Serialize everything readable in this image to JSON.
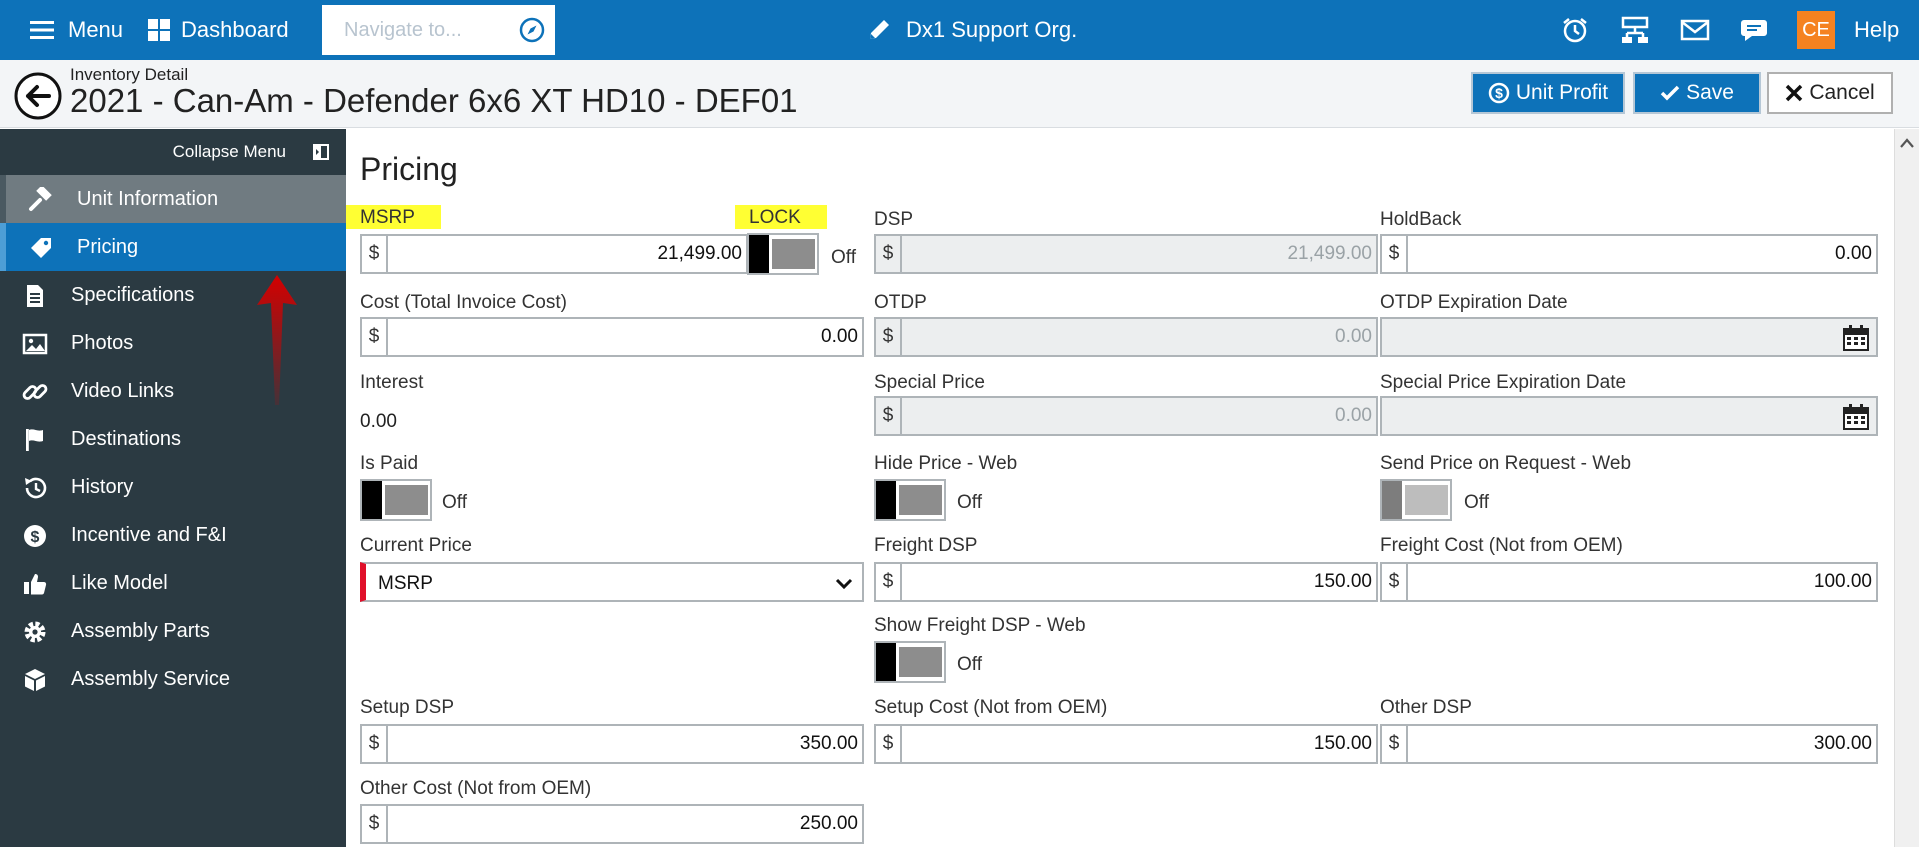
{
  "topbar": {
    "menu_label": "Menu",
    "dashboard_label": "Dashboard",
    "navigate_placeholder": "Navigate to...",
    "org_name": "Dx1 Support Org.",
    "avatar_initials": "CE",
    "help_label": "Help"
  },
  "header": {
    "breadcrumb": "Inventory Detail",
    "title": "2021 - Can-Am - Defender 6x6 XT HD10 - DEF01",
    "unit_profit_label": "Unit Profit",
    "save_label": "Save",
    "cancel_label": "Cancel"
  },
  "sidebar": {
    "collapse_label": "Collapse Menu",
    "items": [
      {
        "label": "Unit Information",
        "icon": "gavel-icon"
      },
      {
        "label": "Pricing",
        "icon": "tag-icon"
      },
      {
        "label": "Specifications",
        "icon": "document-icon"
      },
      {
        "label": "Photos",
        "icon": "image-icon"
      },
      {
        "label": "Video Links",
        "icon": "link-icon"
      },
      {
        "label": "Destinations",
        "icon": "flag-icon"
      },
      {
        "label": "History",
        "icon": "history-icon"
      },
      {
        "label": "Incentive and F&I",
        "icon": "dollar-circle-icon"
      },
      {
        "label": "Like Model",
        "icon": "thumbs-up-icon"
      },
      {
        "label": "Assembly Parts",
        "icon": "gear-icon"
      },
      {
        "label": "Assembly Service",
        "icon": "box-icon"
      }
    ]
  },
  "pricing": {
    "title": "Pricing",
    "currency": "$",
    "off_label": "Off",
    "msrp": {
      "label": "MSRP",
      "value": "21,499.00"
    },
    "lock": {
      "label": "LOCK",
      "state": "Off"
    },
    "dsp": {
      "label": "DSP",
      "value": "21,499.00"
    },
    "holdback": {
      "label": "HoldBack",
      "value": "0.00"
    },
    "cost": {
      "label": "Cost (Total Invoice Cost)",
      "value": "0.00"
    },
    "otdp": {
      "label": "OTDP",
      "value": "0.00"
    },
    "otdp_exp": {
      "label": "OTDP Expiration Date",
      "value": ""
    },
    "interest": {
      "label": "Interest",
      "value": "0.00"
    },
    "special_price": {
      "label": "Special Price",
      "value": "0.00"
    },
    "special_exp": {
      "label": "Special Price Expiration Date",
      "value": ""
    },
    "is_paid": {
      "label": "Is Paid",
      "state": "Off"
    },
    "hide_price": {
      "label": "Hide Price - Web",
      "state": "Off"
    },
    "send_price": {
      "label": "Send Price on Request - Web",
      "state": "Off"
    },
    "current_price": {
      "label": "Current Price",
      "value": "MSRP"
    },
    "freight_dsp": {
      "label": "Freight DSP",
      "value": "150.00"
    },
    "freight_cost": {
      "label": "Freight Cost (Not from OEM)",
      "value": "100.00"
    },
    "show_freight": {
      "label": "Show Freight DSP - Web",
      "state": "Off"
    },
    "setup_dsp": {
      "label": "Setup DSP",
      "value": "350.00"
    },
    "setup_cost": {
      "label": "Setup Cost (Not from OEM)",
      "value": "150.00"
    },
    "other_dsp": {
      "label": "Other DSP",
      "value": "300.00"
    },
    "other_cost": {
      "label": "Other Cost (Not from OEM)",
      "value": "250.00"
    }
  },
  "colors": {
    "brand_blue": "#0d72b9",
    "sidebar_bg": "#2b3a42",
    "highlight": "#ffff33",
    "required_red": "#e0102a",
    "avatar_orange": "#f58220",
    "annotation_arrow": "#d40000"
  }
}
